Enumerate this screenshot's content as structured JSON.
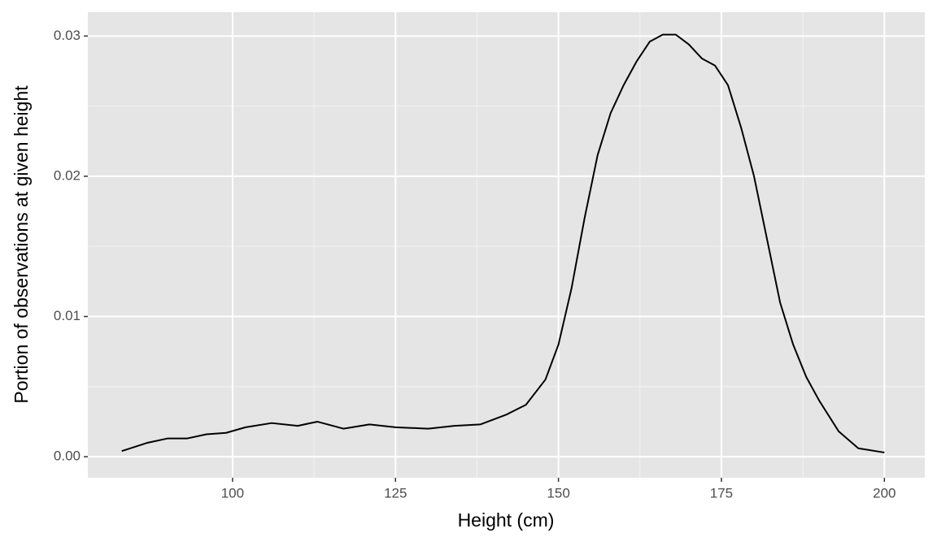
{
  "chart_data": {
    "type": "line",
    "x_label": "Height (cm)",
    "y_label": "Portion of observations at given height",
    "x": [
      83,
      87,
      90,
      93,
      96,
      99,
      102,
      106,
      110,
      113,
      117,
      121,
      125,
      130,
      134,
      138,
      142,
      145,
      148,
      150,
      152,
      154,
      156,
      158,
      160,
      162,
      164,
      166,
      168,
      170,
      172,
      174,
      176,
      178,
      180,
      182,
      184,
      186,
      188,
      190,
      193,
      196,
      200
    ],
    "series": [
      {
        "color": "#000000",
        "values": [
          0.0004,
          0.001,
          0.0013,
          0.0013,
          0.0016,
          0.0017,
          0.0021,
          0.0024,
          0.0022,
          0.0025,
          0.002,
          0.0023,
          0.0021,
          0.002,
          0.0022,
          0.0023,
          0.003,
          0.0037,
          0.0055,
          0.008,
          0.012,
          0.017,
          0.0215,
          0.0245,
          0.0265,
          0.0282,
          0.0296,
          0.0301,
          0.0301,
          0.0294,
          0.0284,
          0.0279,
          0.0265,
          0.0235,
          0.02,
          0.0155,
          0.011,
          0.008,
          0.0057,
          0.004,
          0.0018,
          0.0006,
          0.0003
        ]
      }
    ],
    "xlim": [
      77.8,
      206.2
    ],
    "ylim": [
      -0.0015,
      0.0317
    ],
    "xticks": [
      100,
      125,
      150,
      175,
      200
    ],
    "yticks": [
      {
        "value": 0,
        "label": "0.00"
      },
      0.01,
      0.02,
      0.03
    ],
    "grid": true,
    "minor_grid": true,
    "panel_color": "#e5e5e5"
  }
}
